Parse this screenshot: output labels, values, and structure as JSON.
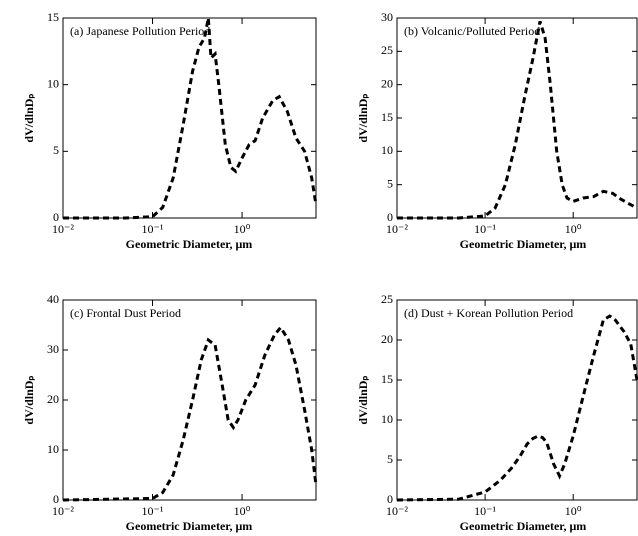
{
  "chart_data": [
    {
      "type": "line",
      "title": "(a) Japanese Pollution Period",
      "xlabel": "Geometric Diameter, μm",
      "ylabel": "dV/dlnDₚ",
      "xscale": "log",
      "line_style": "dashed",
      "color": "#000000",
      "x": [
        0.01,
        0.05,
        0.1,
        0.13,
        0.17,
        0.22,
        0.28,
        0.33,
        0.38,
        0.42,
        0.45,
        0.5,
        0.55,
        0.65,
        0.75,
        0.85,
        1.0,
        1.2,
        1.4,
        1.7,
        2.2,
        2.6,
        3.2,
        4,
        5,
        6,
        6.7
      ],
      "values": [
        0,
        0,
        0.1,
        0.8,
        3,
        7,
        11,
        12.8,
        13.5,
        15,
        12,
        12.3,
        10,
        5.5,
        3.8,
        3.5,
        4.5,
        5.5,
        5.8,
        7.5,
        8.8,
        9.1,
        8,
        6,
        5,
        3,
        1
      ],
      "xlim": [
        0.01,
        6.7
      ],
      "xticks": [
        {
          "value": 0.01,
          "label": "10⁻²"
        },
        {
          "value": 0.1,
          "label": "10⁻¹"
        },
        {
          "value": 1,
          "label": "10⁰"
        }
      ],
      "ylim": [
        0,
        15
      ],
      "yticks": [
        0,
        5,
        10,
        15
      ]
    },
    {
      "type": "line",
      "title": "(b) Volcanic/Polluted Period",
      "xlabel": "Geometric Diameter, μm",
      "ylabel": "dV/dlnDₚ",
      "xscale": "log",
      "line_style": "dashed",
      "color": "#000000",
      "x": [
        0.01,
        0.05,
        0.1,
        0.13,
        0.17,
        0.22,
        0.28,
        0.35,
        0.42,
        0.48,
        0.55,
        0.65,
        0.75,
        0.85,
        1,
        1.3,
        1.7,
        2.2,
        2.8,
        3.5,
        4.5,
        5.3
      ],
      "values": [
        0,
        0,
        0.3,
        1.5,
        5,
        11,
        18,
        24,
        29.5,
        27,
        20,
        10,
        5,
        3,
        2.5,
        3,
        3.2,
        4,
        3.7,
        2.8,
        2,
        1.5
      ],
      "xlim": [
        0.01,
        5.3
      ],
      "xticks": [
        {
          "value": 0.01,
          "label": "10⁻²"
        },
        {
          "value": 0.1,
          "label": "10⁻¹"
        },
        {
          "value": 1,
          "label": "10⁰"
        }
      ],
      "ylim": [
        0,
        30
      ],
      "yticks": [
        0,
        5,
        10,
        15,
        20,
        25,
        30
      ]
    },
    {
      "type": "line",
      "title": "(c) Frontal Dust Period",
      "xlabel": "Geometric Diameter, μm",
      "ylabel": "dV/dlnDₚ",
      "xscale": "log",
      "line_style": "dashed",
      "color": "#000000",
      "x": [
        0.01,
        0.1,
        0.13,
        0.17,
        0.22,
        0.28,
        0.35,
        0.42,
        0.5,
        0.6,
        0.7,
        0.8,
        0.9,
        1.1,
        1.4,
        1.8,
        2.3,
        2.7,
        3.3,
        4,
        5,
        6,
        6.7
      ],
      "values": [
        0,
        0.3,
        1.5,
        5,
        12,
        20,
        28,
        32,
        31,
        23,
        16,
        14.5,
        16,
        20,
        23,
        29,
        33,
        34.5,
        32,
        27,
        18,
        10,
        3
      ],
      "xlim": [
        0.01,
        6.7
      ],
      "xticks": [
        {
          "value": 0.01,
          "label": "10⁻²"
        },
        {
          "value": 0.1,
          "label": "10⁻¹"
        },
        {
          "value": 1,
          "label": "10⁰"
        }
      ],
      "ylim": [
        0,
        40
      ],
      "yticks": [
        0,
        10,
        20,
        30,
        40
      ]
    },
    {
      "type": "line",
      "title": "(d) Dust + Korean Pollution Period",
      "xlabel": "Geometric Diameter, μm",
      "ylabel": "dV/dlnDₚ",
      "xscale": "log",
      "line_style": "dashed",
      "color": "#000000",
      "x": [
        0.01,
        0.05,
        0.1,
        0.15,
        0.2,
        0.25,
        0.3,
        0.35,
        0.4,
        0.45,
        0.5,
        0.6,
        0.7,
        0.8,
        1,
        1.3,
        1.7,
        2.2,
        2.6,
        3,
        3.8,
        4.5,
        5.3
      ],
      "values": [
        0,
        0.1,
        1,
        2.5,
        4,
        5.5,
        7,
        7.7,
        8,
        7.8,
        7.2,
        4.5,
        3,
        4.5,
        8,
        13,
        18,
        22.5,
        23,
        22.5,
        21,
        19.5,
        15
      ],
      "xlim": [
        0.01,
        5.3
      ],
      "xticks": [
        {
          "value": 0.01,
          "label": "10⁻²"
        },
        {
          "value": 0.1,
          "label": "10⁻¹"
        },
        {
          "value": 1,
          "label": "10⁰"
        }
      ],
      "ylim": [
        0,
        25
      ],
      "yticks": [
        0,
        5,
        10,
        15,
        20,
        25
      ]
    }
  ]
}
